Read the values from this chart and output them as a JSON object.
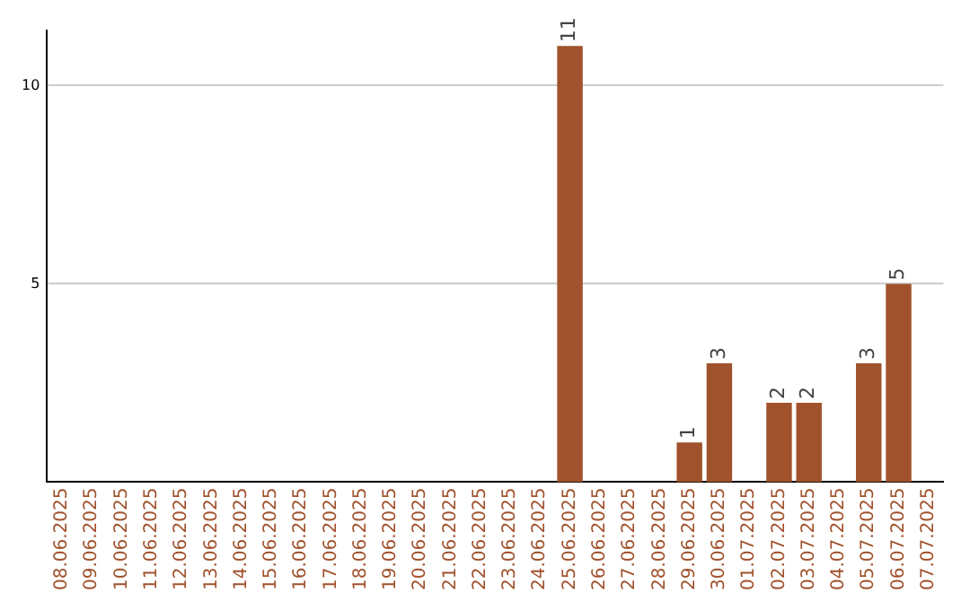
{
  "chart_data": {
    "type": "bar",
    "categories": [
      "08.06.2025",
      "09.06.2025",
      "10.06.2025",
      "11.06.2025",
      "12.06.2025",
      "13.06.2025",
      "14.06.2025",
      "15.06.2025",
      "16.06.2025",
      "17.06.2025",
      "18.06.2025",
      "19.06.2025",
      "20.06.2025",
      "21.06.2025",
      "22.06.2025",
      "23.06.2025",
      "24.06.2025",
      "25.06.2025",
      "26.06.2025",
      "27.06.2025",
      "28.06.2025",
      "29.06.2025",
      "30.06.2025",
      "01.07.2025",
      "02.07.2025",
      "03.07.2025",
      "04.07.2025",
      "05.07.2025",
      "06.07.2025",
      "07.07.2025"
    ],
    "values": [
      null,
      null,
      null,
      null,
      null,
      null,
      null,
      null,
      null,
      null,
      null,
      null,
      null,
      null,
      null,
      null,
      null,
      11,
      null,
      null,
      null,
      1,
      3,
      null,
      2,
      2,
      null,
      3,
      5,
      null
    ],
    "color": "#a0522d",
    "ylim": [
      0,
      11.4
    ],
    "yticks": [
      5,
      10
    ],
    "grid": "y",
    "data_labels": true
  }
}
